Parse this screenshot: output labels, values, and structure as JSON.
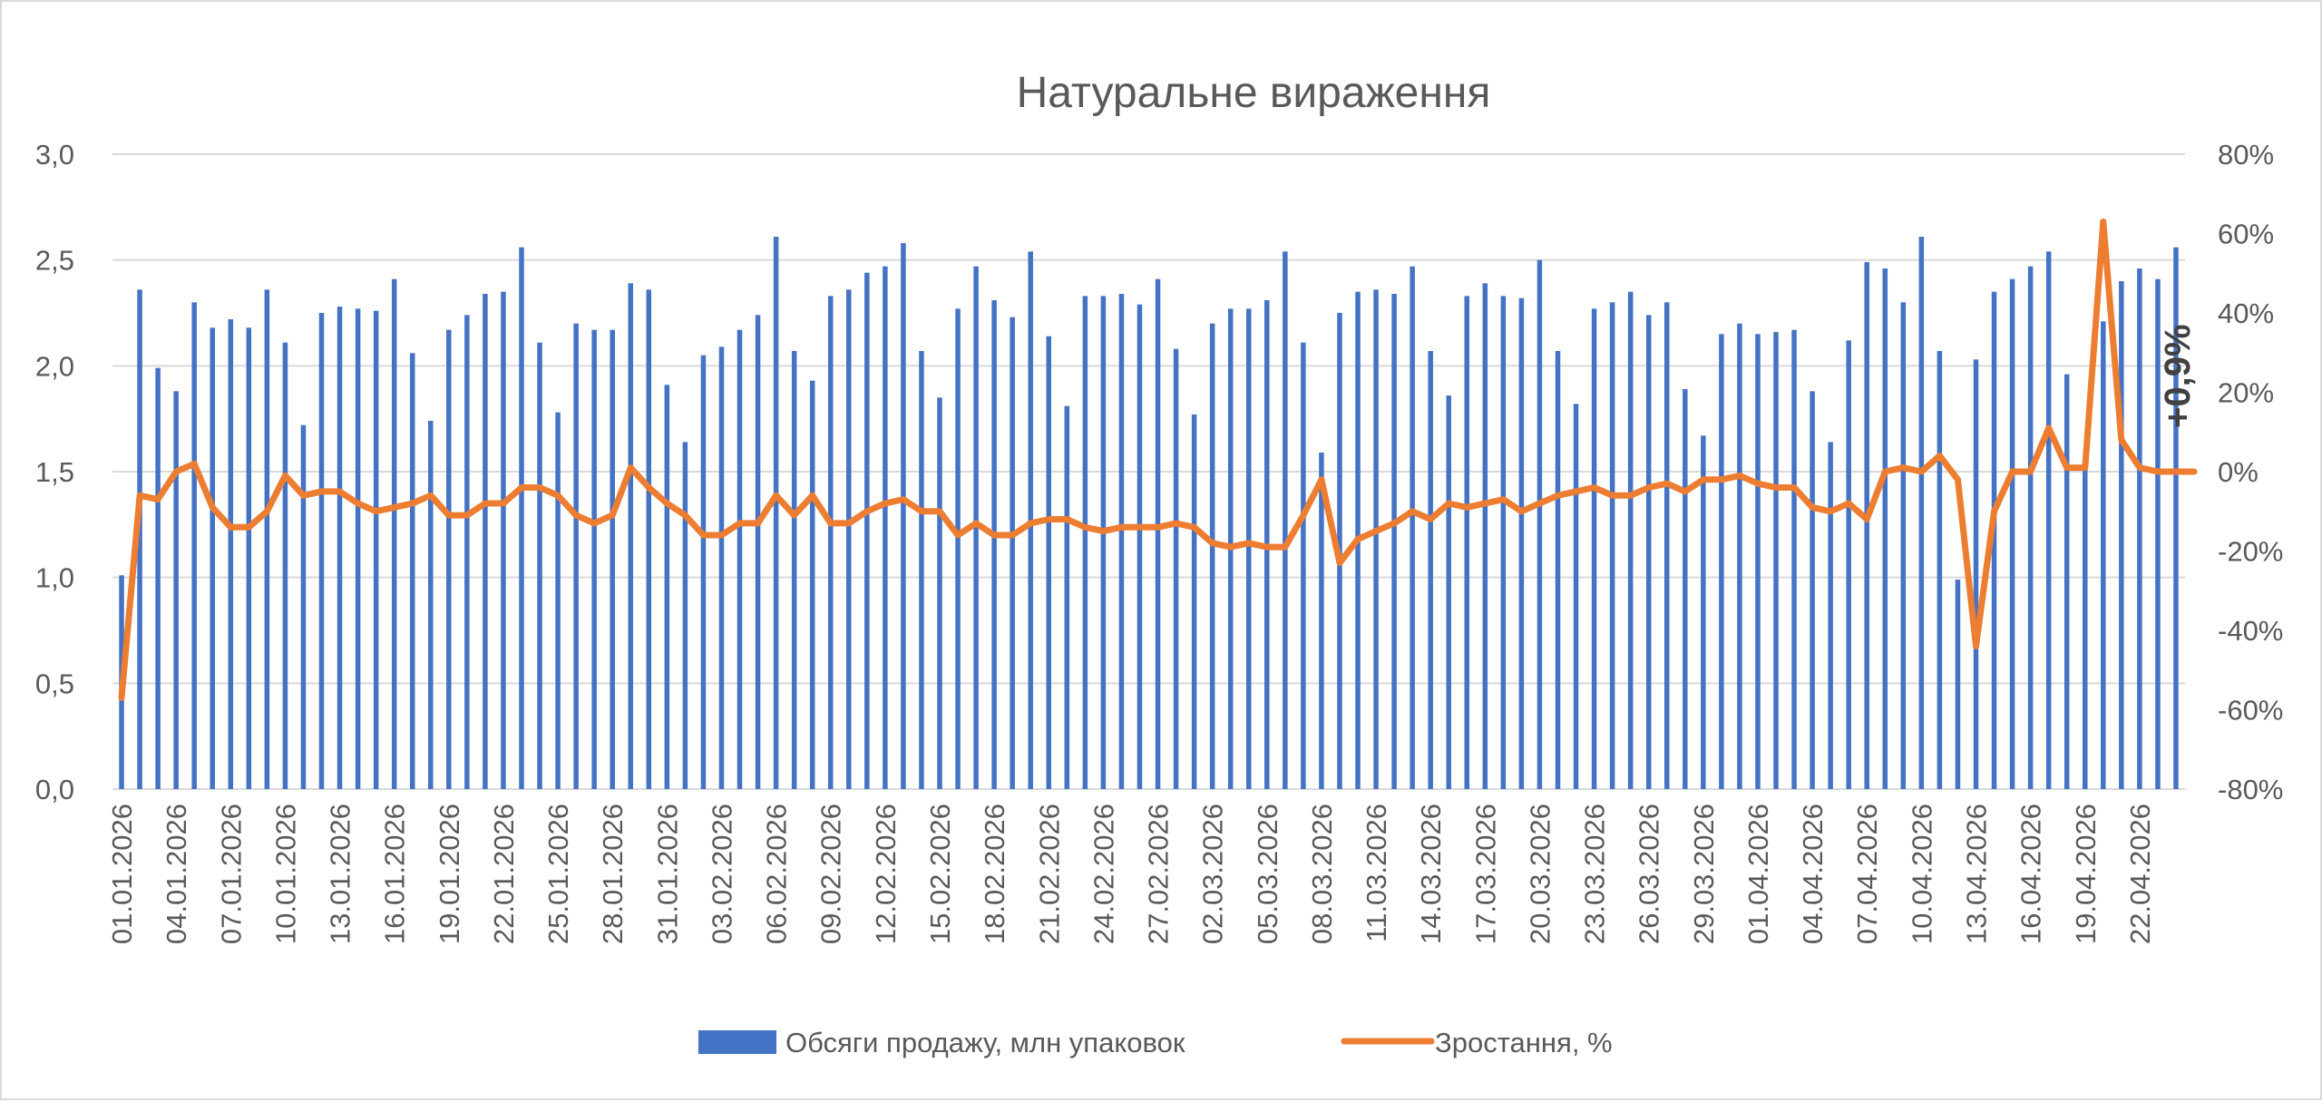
{
  "chart_data": {
    "type": "bar+line",
    "title": "Натуральне вираження",
    "annotation": "+0,9%",
    "y_left": {
      "min": 0,
      "max": 3,
      "step": 0.5,
      "tick_labels": [
        "0,0",
        "0,5",
        "1,0",
        "1,5",
        "2,0",
        "2,5",
        "3,0"
      ]
    },
    "y_right": {
      "min": -80,
      "max": 80,
      "step": 20,
      "tick_labels": [
        "-80%",
        "-60%",
        "-40%",
        "-20%",
        "0%",
        "20%",
        "40%",
        "60%",
        "80%"
      ]
    },
    "x_tick_labels": [
      "01.01.2026",
      "04.01.2026",
      "07.01.2026",
      "10.01.2026",
      "13.01.2026",
      "16.01.2026",
      "19.01.2026",
      "22.01.2026",
      "25.01.2026",
      "28.01.2026",
      "31.01.2026",
      "03.02.2026",
      "06.02.2026",
      "09.02.2026",
      "12.02.2026",
      "15.02.2026",
      "18.02.2026",
      "21.02.2026",
      "24.02.2026",
      "27.02.2026",
      "02.03.2026",
      "05.03.2026",
      "08.03.2026",
      "11.03.2026",
      "14.03.2026",
      "17.03.2026",
      "20.03.2026",
      "23.03.2026",
      "26.03.2026",
      "29.03.2026",
      "01.04.2026",
      "04.04.2026",
      "07.04.2026",
      "10.04.2026",
      "13.04.2026",
      "16.04.2026",
      "19.04.2026",
      "22.04.2026"
    ],
    "series": [
      {
        "name": "Обсяги продажу, млн упаковок",
        "type": "bar",
        "axis": "left",
        "color": "#4472c4",
        "values": [
          1.01,
          2.36,
          1.99,
          1.88,
          2.3,
          2.18,
          2.22,
          2.18,
          2.36,
          2.11,
          1.72,
          2.25,
          2.28,
          2.27,
          2.26,
          2.41,
          2.06,
          1.74,
          2.17,
          2.24,
          2.34,
          2.35,
          2.56,
          2.11,
          1.78,
          2.2,
          2.17,
          2.17,
          2.39,
          2.36,
          1.91,
          1.64,
          2.05,
          2.09,
          2.17,
          2.24,
          2.61,
          2.07,
          1.93,
          2.33,
          2.36,
          2.44,
          2.47,
          2.58,
          2.07,
          1.85,
          2.27,
          2.47,
          2.31,
          2.23,
          2.54,
          2.14,
          1.81,
          2.33,
          2.33,
          2.34,
          2.29,
          2.41,
          2.08,
          1.77,
          2.2,
          2.27,
          2.27,
          2.31,
          2.54,
          2.11,
          1.59,
          2.25,
          2.35,
          2.36,
          2.34,
          2.47,
          2.07,
          1.86,
          2.33,
          2.39,
          2.33,
          2.32,
          2.5,
          2.07,
          1.82,
          2.27,
          2.3,
          2.35,
          2.24,
          2.3,
          1.89,
          1.67,
          2.15,
          2.2,
          2.15,
          2.16,
          2.17,
          1.88,
          1.64,
          2.12,
          2.49,
          2.46,
          2.3,
          2.61,
          2.07,
          0.99,
          2.03,
          2.35,
          2.41,
          2.47,
          2.54,
          1.96,
          1.55,
          2.21,
          2.4,
          2.46,
          2.41,
          2.56
        ]
      },
      {
        "name": "Зростання, %",
        "type": "line",
        "axis": "right",
        "color": "#ed7d31",
        "values": [
          -57,
          -6,
          -7,
          0,
          2,
          -9,
          -14,
          -14,
          -10,
          -1,
          -6,
          -5,
          -5,
          -8,
          -10,
          -9,
          -8,
          -6,
          -11,
          -11,
          -8,
          -8,
          -4,
          -4,
          -6,
          -11,
          -13,
          -11,
          1,
          -4,
          -8,
          -11,
          -16,
          -16,
          -13,
          -13,
          -6,
          -11,
          -6,
          -13,
          -13,
          -10,
          -8,
          -7,
          -10,
          -10,
          -16,
          -13,
          -16,
          -16,
          -13,
          -12,
          -12,
          -14,
          -15,
          -14,
          -14,
          -14,
          -13,
          -14,
          -18,
          -19,
          -18,
          -19,
          -19,
          -11,
          -2,
          -23,
          -17,
          -15,
          -13,
          -10,
          -12,
          -8,
          -9,
          -8,
          -7,
          -10,
          -8,
          -6,
          -5,
          -4,
          -6,
          -6,
          -4,
          -3,
          -5,
          -2,
          -2,
          -1,
          -3,
          -4,
          -4,
          -9,
          -10,
          -8,
          -12,
          0,
          1,
          0,
          4,
          -2,
          -44,
          -10,
          0,
          0,
          11,
          1,
          1,
          63,
          8,
          1,
          0,
          0,
          0
        ]
      }
    ],
    "legend_position": "bottom",
    "gridlines": true
  }
}
